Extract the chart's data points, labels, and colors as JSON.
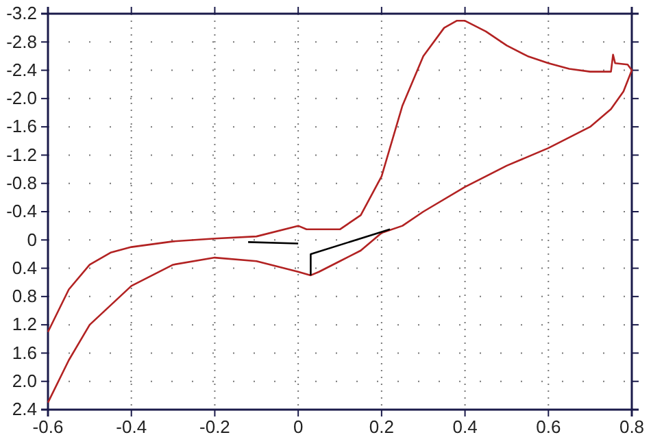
{
  "chart_data": {
    "type": "line",
    "xlim": [
      -0.6,
      0.8
    ],
    "ylim": [
      2.4,
      -3.2
    ],
    "xticks": [
      -0.6,
      -0.4,
      -0.2,
      0,
      0.2,
      0.4,
      0.6,
      0.8
    ],
    "yticks": [
      -3.2,
      -2.8,
      -2.4,
      {
        "value": -2,
        "label": "-2.0"
      },
      -1.6,
      -1.2,
      -0.8,
      -0.4,
      0,
      0.4,
      0.8,
      1.2,
      1.6,
      {
        "value": 2,
        "label": "2.0"
      },
      2.4
    ],
    "grid": true,
    "line_style": "solid",
    "marker": "none",
    "series": [
      {
        "color": "#b22222",
        "x": [
          -0.6,
          -0.55,
          -0.5,
          -0.45,
          -0.4,
          -0.3,
          -0.2,
          -0.1,
          0,
          0.02,
          0.1,
          0.15,
          0.2,
          0.25,
          0.3,
          0.35,
          0.38,
          0.4,
          0.45,
          0.5,
          0.55,
          0.6,
          0.65,
          0.7,
          0.75,
          0.755,
          0.76,
          0.79,
          0.8,
          0.78,
          0.75,
          0.7,
          0.65,
          0.6,
          0.5,
          0.4,
          0.3,
          0.25,
          0.2,
          0.15,
          0.1,
          0.05,
          0.03,
          0,
          -0.1,
          -0.2,
          -0.3,
          -0.4,
          -0.5,
          -0.55,
          -0.6
        ],
        "values": [
          1.3,
          0.7,
          0.35,
          0.18,
          0.1,
          0.02,
          -0.02,
          -0.05,
          -0.2,
          -0.15,
          -0.15,
          -0.35,
          -0.9,
          -1.9,
          -2.6,
          -3.0,
          -3.1,
          -3.1,
          -2.95,
          -2.75,
          -2.6,
          -2.5,
          -2.42,
          -2.38,
          -2.38,
          -2.62,
          -2.5,
          -2.48,
          -2.4,
          -2.1,
          -1.85,
          -1.6,
          -1.45,
          -1.3,
          -1.05,
          -0.75,
          -0.4,
          -0.2,
          -0.1,
          0.15,
          0.3,
          0.45,
          0.5,
          0.45,
          0.3,
          0.25,
          0.35,
          0.65,
          1.2,
          1.7,
          2.3
        ]
      },
      {
        "color": "#000000",
        "x": [
          -0.12,
          0,
          null,
          0.03,
          0.03,
          0.22
        ],
        "values": [
          0.03,
          0.05,
          null,
          0.5,
          0.2,
          -0.15
        ]
      }
    ]
  }
}
